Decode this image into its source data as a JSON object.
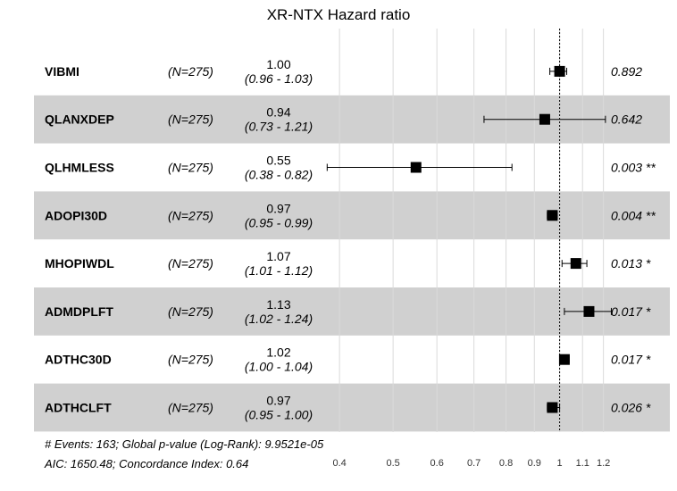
{
  "chart_data": {
    "type": "forest",
    "title": "XR-NTX Hazard ratio",
    "x_scale": "log",
    "xlim": [
      0.355,
      1.28
    ],
    "x_ticks": [
      "0.4",
      "0.5",
      "0.6",
      "0.7",
      "0.8",
      "0.9",
      "1",
      "1.1",
      "1.2"
    ],
    "x_tick_values": [
      0.4,
      0.5,
      0.6,
      0.7,
      0.8,
      0.9,
      1.0,
      1.1,
      1.2
    ],
    "reference_line": 1.0,
    "grid": true,
    "rows": [
      {
        "variable": "VIBMI",
        "n": "(N=275)",
        "hr_label": "1.00",
        "ci_label": "(0.96 - 1.03)",
        "hr": 1.0,
        "lower": 0.96,
        "upper": 1.03,
        "p_label": "0.892",
        "shaded": false
      },
      {
        "variable": "QLANXDEP",
        "n": "(N=275)",
        "hr_label": "0.94",
        "ci_label": "(0.73 - 1.21)",
        "hr": 0.94,
        "lower": 0.73,
        "upper": 1.21,
        "p_label": "0.642",
        "shaded": true
      },
      {
        "variable": "QLHMLESS",
        "n": "(N=275)",
        "hr_label": "0.55",
        "ci_label": "(0.38 - 0.82)",
        "hr": 0.55,
        "lower": 0.38,
        "upper": 0.82,
        "p_label": "0.003 **",
        "shaded": false
      },
      {
        "variable": "ADOPI30D",
        "n": "(N=275)",
        "hr_label": "0.97",
        "ci_label": "(0.95 - 0.99)",
        "hr": 0.97,
        "lower": 0.95,
        "upper": 0.99,
        "p_label": "0.004 **",
        "shaded": true
      },
      {
        "variable": "MHOPIWDL",
        "n": "(N=275)",
        "hr_label": "1.07",
        "ci_label": "(1.01 - 1.12)",
        "hr": 1.07,
        "lower": 1.01,
        "upper": 1.12,
        "p_label": "0.013 *",
        "shaded": false
      },
      {
        "variable": "ADMDPLFT",
        "n": "(N=275)",
        "hr_label": "1.13",
        "ci_label": "(1.02 - 1.24)",
        "hr": 1.13,
        "lower": 1.02,
        "upper": 1.24,
        "p_label": "0.017 *",
        "shaded": true
      },
      {
        "variable": "ADTHC30D",
        "n": "(N=275)",
        "hr_label": "1.02",
        "ci_label": "(1.00 - 1.04)",
        "hr": 1.02,
        "lower": 1.0,
        "upper": 1.04,
        "p_label": "0.017 *",
        "shaded": false
      },
      {
        "variable": "ADTHCLFT",
        "n": "(N=275)",
        "hr_label": "0.97",
        "ci_label": "(0.95 - 1.00)",
        "hr": 0.97,
        "lower": 0.95,
        "upper": 1.0,
        "p_label": "0.026 *",
        "shaded": true
      }
    ],
    "footer": [
      "# Events: 163; Global p-value (Log-Rank): 9.9521e-05",
      "AIC: 1650.48; Concordance Index: 0.64"
    ]
  }
}
